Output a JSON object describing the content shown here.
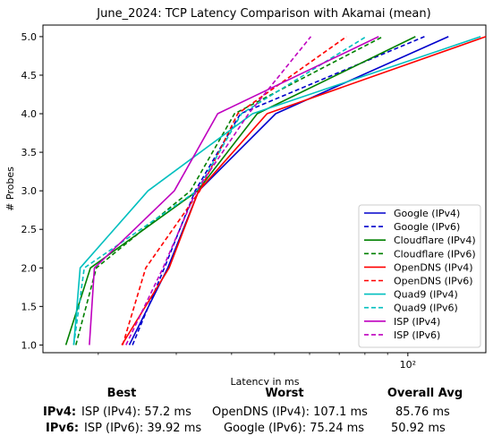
{
  "chart_data": {
    "type": "line",
    "title": "June_2024: TCP Latency Comparison with Akamai (mean)",
    "xlabel": "Latency in ms",
    "ylabel": "# Probes",
    "xscale": "log",
    "xlim": [
      15,
      150
    ],
    "ylim": [
      0.9,
      5.15
    ],
    "xticks": [
      {
        "value": 100,
        "label": "10²"
      }
    ],
    "yticks": [
      1.0,
      1.5,
      2.0,
      2.5,
      3.0,
      3.5,
      4.0,
      4.5,
      5.0
    ],
    "ytick_labels": [
      "1.0",
      "1.5",
      "2.0",
      "2.5",
      "3.0",
      "3.5",
      "4.0",
      "4.5",
      "5.0"
    ],
    "grid": false,
    "legend": "bottom-right",
    "series": [
      {
        "name": "Google (IPv4)",
        "color": "#0000cc",
        "dash": "solid",
        "points": [
          [
            23.5,
            1
          ],
          [
            28.7,
            2
          ],
          [
            33.7,
            3
          ],
          [
            50.3,
            4
          ],
          [
            123.5,
            5
          ]
        ]
      },
      {
        "name": "Google (IPv6)",
        "color": "#0000cc",
        "dash": "dashed",
        "points": [
          [
            23.9,
            1
          ],
          [
            28.2,
            2
          ],
          [
            33.1,
            3
          ],
          [
            41.9,
            4
          ],
          [
            109,
            5
          ]
        ]
      },
      {
        "name": "Cloudflare (IPv4)",
        "color": "#008000",
        "dash": "solid",
        "points": [
          [
            16.9,
            1
          ],
          [
            19.2,
            2
          ],
          [
            33.5,
            3
          ],
          [
            45.7,
            4
          ],
          [
            104,
            5
          ]
        ]
      },
      {
        "name": "Cloudflare (IPv6)",
        "color": "#008000",
        "dash": "dashed",
        "points": [
          [
            17.8,
            1
          ],
          [
            19.8,
            2
          ],
          [
            32.3,
            3
          ],
          [
            40.6,
            4
          ],
          [
            87.8,
            5
          ]
        ]
      },
      {
        "name": "OpenDNS (IPv4)",
        "color": "#ff0000",
        "dash": "solid",
        "points": [
          [
            22.6,
            1
          ],
          [
            28.9,
            2
          ],
          [
            33.7,
            3
          ],
          [
            48.1,
            4
          ],
          [
            150,
            5
          ]
        ]
      },
      {
        "name": "OpenDNS (IPv6)",
        "color": "#ff0000",
        "dash": "dashed",
        "points": [
          [
            22.7,
            1
          ],
          [
            25.6,
            2
          ],
          [
            33.9,
            3
          ],
          [
            41.3,
            4
          ],
          [
            72.7,
            5
          ]
        ]
      },
      {
        "name": "Quad9 (IPv4)",
        "color": "#00bfbf",
        "dash": "solid",
        "points": [
          [
            17.6,
            1
          ],
          [
            18.2,
            2
          ],
          [
            25.9,
            3
          ],
          [
            44.6,
            4
          ],
          [
            146,
            5
          ]
        ]
      },
      {
        "name": "Quad9 (IPv6)",
        "color": "#00bfbf",
        "dash": "dashed",
        "points": [
          [
            17.6,
            1
          ],
          [
            18.6,
            2
          ],
          [
            33.4,
            3
          ],
          [
            42.1,
            4
          ],
          [
            80.5,
            5
          ]
        ]
      },
      {
        "name": "ISP (IPv4)",
        "color": "#bf00bf",
        "dash": "solid",
        "points": [
          [
            19.1,
            1
          ],
          [
            19.6,
            2
          ],
          [
            29.7,
            3
          ],
          [
            37.2,
            4
          ],
          [
            85.9,
            5
          ]
        ]
      },
      {
        "name": "ISP (IPv6)",
        "color": "#bf00bf",
        "dash": "dashed",
        "points": [
          [
            23.1,
            1
          ],
          [
            28.0,
            2
          ],
          [
            33.3,
            3
          ],
          [
            43.7,
            4
          ],
          [
            60.4,
            5
          ]
        ]
      }
    ]
  },
  "summary": {
    "headers": {
      "best": "Best",
      "worst": "Worst",
      "avg": "Overall Avg"
    },
    "rows": [
      {
        "label": "IPv4:",
        "best": "ISP (IPv4): 57.2 ms",
        "worst": "OpenDNS (IPv4): 107.1 ms",
        "avg": "85.76 ms"
      },
      {
        "label": "IPv6:",
        "best": "ISP (IPv6): 39.92 ms",
        "worst": "Google (IPv6): 75.24 ms",
        "avg": "50.92 ms"
      }
    ]
  }
}
